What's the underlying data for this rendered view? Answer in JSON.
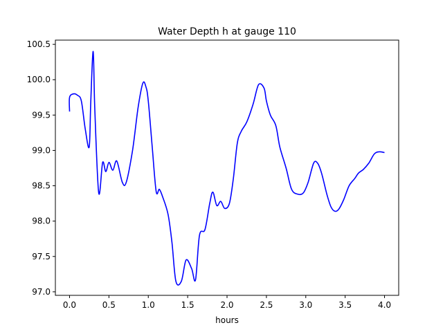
{
  "chart_data": {
    "type": "line",
    "title": "Water Depth h at gauge 110",
    "xlabel": "hours",
    "ylabel": "",
    "xlim": [
      -0.18,
      4.18
    ],
    "ylim": [
      96.95,
      100.56
    ],
    "xticks": [
      0.0,
      0.5,
      1.0,
      1.5,
      2.0,
      2.5,
      3.0,
      3.5,
      4.0
    ],
    "xtick_labels": [
      "0.0",
      "0.5",
      "1.0",
      "1.5",
      "2.0",
      "2.5",
      "3.0",
      "3.5",
      "4.0"
    ],
    "yticks": [
      97.0,
      97.5,
      98.0,
      98.5,
      99.0,
      99.5,
      100.0,
      100.5
    ],
    "ytick_labels": [
      "97.0",
      "97.5",
      "98.0",
      "98.5",
      "99.0",
      "99.5",
      "100.0",
      "100.5"
    ],
    "grid": false,
    "series": [
      {
        "color": "#0000ff",
        "x": [
          0.0,
          0.0,
          0.05,
          0.1,
          0.15,
          0.2,
          0.25,
          0.27,
          0.3,
          0.32,
          0.37,
          0.42,
          0.46,
          0.5,
          0.55,
          0.6,
          0.67,
          0.72,
          0.8,
          0.87,
          0.93,
          0.97,
          1.0,
          1.05,
          1.1,
          1.14,
          1.18,
          1.25,
          1.3,
          1.35,
          1.42,
          1.48,
          1.55,
          1.6,
          1.65,
          1.72,
          1.78,
          1.82,
          1.87,
          1.92,
          1.97,
          2.03,
          2.08,
          2.13,
          2.18,
          2.25,
          2.33,
          2.4,
          2.47,
          2.5,
          2.55,
          2.62,
          2.67,
          2.75,
          2.82,
          2.9,
          2.97,
          3.03,
          3.1,
          3.15,
          3.2,
          3.27,
          3.32,
          3.37,
          3.42,
          3.48,
          3.55,
          3.62,
          3.67,
          3.73,
          3.8,
          3.87,
          3.93,
          4.0
        ],
        "y": [
          99.55,
          99.75,
          99.8,
          99.78,
          99.7,
          99.3,
          99.05,
          99.7,
          100.4,
          99.6,
          98.4,
          98.83,
          98.7,
          98.83,
          98.72,
          98.85,
          98.55,
          98.55,
          99.0,
          99.6,
          99.95,
          99.9,
          99.7,
          99.05,
          98.42,
          98.45,
          98.35,
          98.1,
          97.7,
          97.15,
          97.15,
          97.45,
          97.33,
          97.17,
          97.8,
          97.88,
          98.25,
          98.41,
          98.22,
          98.28,
          98.18,
          98.25,
          98.6,
          99.1,
          99.27,
          99.4,
          99.65,
          99.93,
          99.88,
          99.7,
          99.5,
          99.35,
          99.05,
          98.75,
          98.45,
          98.38,
          98.4,
          98.55,
          98.82,
          98.82,
          98.68,
          98.37,
          98.2,
          98.14,
          98.17,
          98.3,
          98.5,
          98.6,
          98.68,
          98.73,
          98.82,
          98.95,
          98.98,
          98.97
        ]
      }
    ]
  }
}
